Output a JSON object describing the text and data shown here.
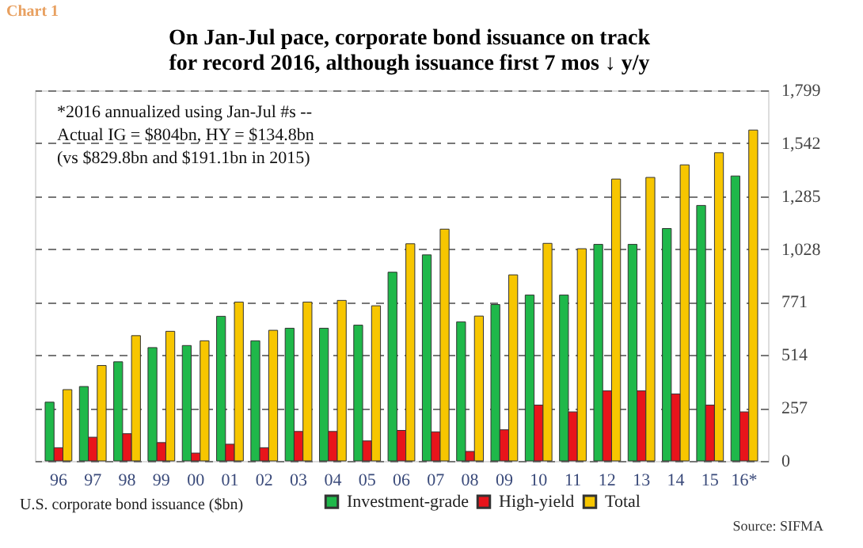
{
  "chart_data": {
    "type": "bar",
    "title": "On Jan-Jul pace, corporate bond issuance on track\nfor record  2016, although issuance first 7 mos ↓ y/y",
    "xlabel": "U.S. corporate bond issuance ($bn)",
    "categories": [
      "96",
      "97",
      "98",
      "99",
      "00",
      "01",
      "02",
      "03",
      "04",
      "05",
      "06",
      "07",
      "08",
      "09",
      "10",
      "11",
      "12",
      "13",
      "14",
      "15",
      "16*"
    ],
    "series": [
      {
        "name": "Investment-grade",
        "color": "#1fb84a",
        "values": [
          285,
          361,
          481,
          550,
          560,
          702,
          583,
          644,
          644,
          659,
          916,
          1000,
          675,
          759,
          805,
          805,
          1051,
          1051,
          1128,
          1240,
          1383
        ]
      },
      {
        "name": "High-yield",
        "color": "#e8141b",
        "values": [
          64,
          115,
          132,
          89,
          38,
          81,
          64,
          143,
          143,
          97,
          148,
          141,
          46,
          151,
          271,
          238,
          340,
          340,
          325,
          271,
          238
        ]
      },
      {
        "name": "Total",
        "color": "#f7c600",
        "values": [
          346,
          463,
          608,
          629,
          583,
          771,
          634,
          771,
          779,
          753,
          1054,
          1125,
          703,
          903,
          1056,
          1030,
          1368,
          1376,
          1437,
          1496,
          1606
        ]
      }
    ],
    "ylim": [
      0,
      1799
    ],
    "yticks": [
      0,
      257,
      514,
      771,
      {
        "value": 1028,
        "label": "1,028"
      },
      {
        "value": 1285,
        "label": "1,285"
      },
      {
        "value": 1542,
        "label": "1,542"
      },
      {
        "value": 1799,
        "label": "1,799"
      }
    ],
    "grid": "y",
    "legend": "bottom",
    "annotations": [
      "Chart 1",
      "*2016 annualized using Jan-Jul #s --\nActual IG = $804bn, HY = $134.8bn\n(vs $829.8bn and $191.1bn in 2015)",
      "Source: SIFMA"
    ]
  }
}
